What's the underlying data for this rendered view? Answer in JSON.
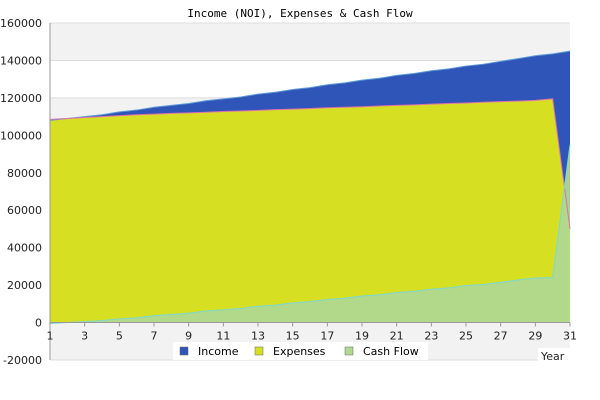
{
  "chart_data": {
    "type": "area",
    "title": "Income (NOI), Expenses & Cash Flow",
    "xlabel": "Year",
    "ylabel": "",
    "xlim": [
      1,
      31
    ],
    "ylim": [
      -20000,
      160000
    ],
    "x_ticks": [
      1,
      3,
      5,
      7,
      9,
      11,
      13,
      15,
      17,
      19,
      21,
      23,
      25,
      27,
      29,
      31
    ],
    "y_ticks": [
      -20000,
      0,
      20000,
      40000,
      60000,
      80000,
      100000,
      120000,
      140000,
      160000
    ],
    "grid": true,
    "legend": "bottom",
    "colors": {
      "income": "#2f55b8",
      "income_line": "#5a9ad8",
      "expenses": "#d7df23",
      "expenses_line": "#e070b0",
      "cash_flow": "#b0d890",
      "cash_flow_line": "#7ad8d8",
      "band": "#f2f2f2"
    },
    "x": [
      1,
      2,
      3,
      4,
      5,
      6,
      7,
      8,
      9,
      10,
      11,
      12,
      13,
      14,
      15,
      16,
      17,
      18,
      19,
      20,
      21,
      22,
      23,
      24,
      25,
      26,
      27,
      28,
      29,
      30,
      31
    ],
    "series": [
      {
        "name": "Income",
        "values": [
          108000,
          109000,
          110000,
          111000,
          112500,
          113500,
          115000,
          116000,
          117000,
          118500,
          119500,
          120500,
          122000,
          123000,
          124500,
          125500,
          127000,
          128000,
          129500,
          130500,
          132000,
          133000,
          134500,
          135500,
          137000,
          138000,
          139500,
          141000,
          142500,
          143500,
          145000
        ]
      },
      {
        "name": "Expenses",
        "values": [
          108500,
          109000,
          109500,
          110000,
          110500,
          111000,
          111300,
          111700,
          112000,
          112300,
          112700,
          113000,
          113300,
          113700,
          114000,
          114300,
          114700,
          115000,
          115300,
          115700,
          116000,
          116300,
          116700,
          117000,
          117300,
          117700,
          118000,
          118300,
          118700,
          119500,
          50000
        ]
      },
      {
        "name": "Cash Flow",
        "values": [
          -500,
          0,
          500,
          1000,
          2000,
          2500,
          3700,
          4300,
          5000,
          6200,
          6800,
          7500,
          8700,
          9300,
          10500,
          11200,
          12300,
          13000,
          14200,
          14800,
          16000,
          16700,
          17800,
          18500,
          19700,
          20300,
          21500,
          22700,
          23800,
          24000,
          95000
        ]
      }
    ]
  }
}
